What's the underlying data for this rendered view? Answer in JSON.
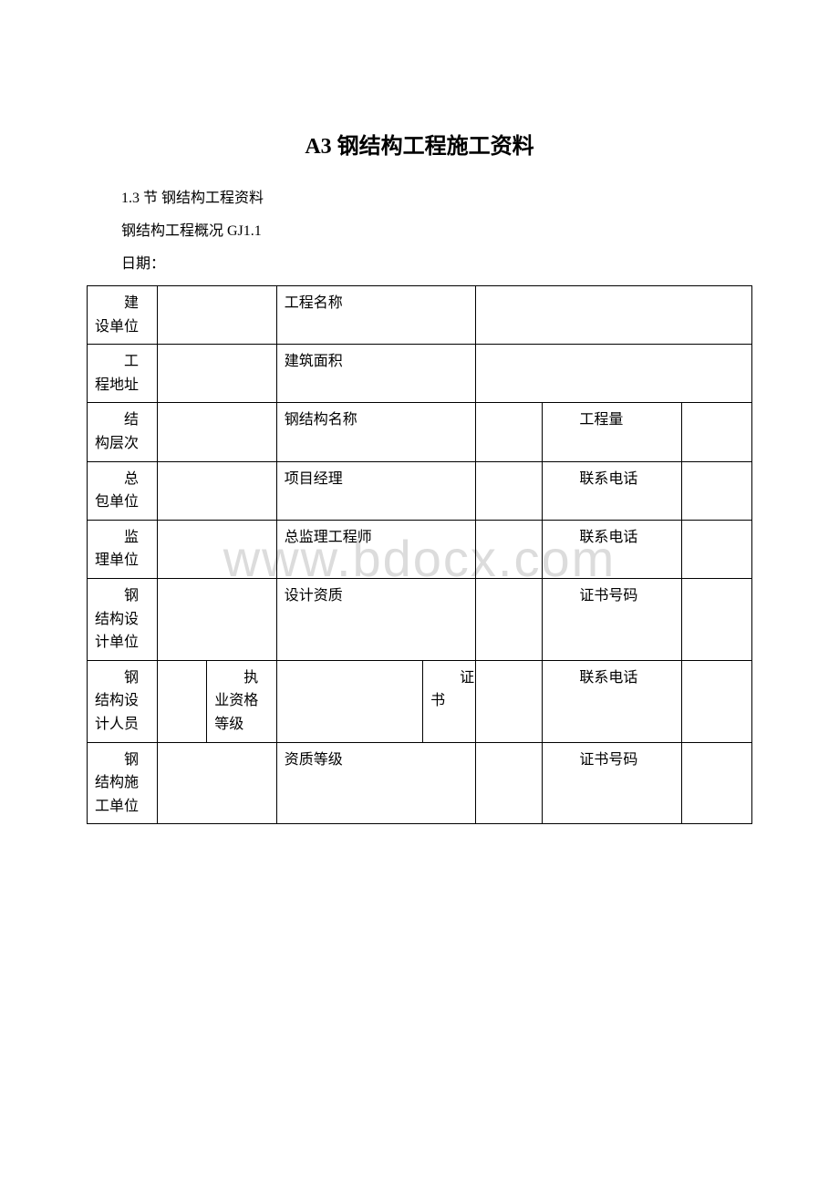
{
  "title": "A3 钢结构工程施工资料",
  "section_line": "1.3 节 钢结构工程资料",
  "overview_line": "钢结构工程概况   GJ1.1",
  "date_line": "日期：",
  "watermark": "www.bdocx.com",
  "rows": {
    "r1": {
      "label": "建设单位",
      "mid": "工程名称"
    },
    "r2": {
      "label": "工程地址",
      "mid": "建筑面积"
    },
    "r3": {
      "label": "结构层次",
      "mid": "钢结构名称",
      "right": "工程量"
    },
    "r4": {
      "label": "总包单位",
      "mid": "项目经理",
      "right": "联系电话"
    },
    "r5": {
      "label": "监理单位",
      "mid": "总监理工程师",
      "right": "联系电话"
    },
    "r6": {
      "label": "钢结构设计单位",
      "mid": "设计资质",
      "right": "证书号码"
    },
    "r7": {
      "label": "钢结构设计人员",
      "sub": "执业资格\n等级",
      "mid2": "证书",
      "right": "联系电话"
    },
    "r8": {
      "label": "钢结构施工单位",
      "mid": "资质等级",
      "right": "证书号码"
    }
  }
}
